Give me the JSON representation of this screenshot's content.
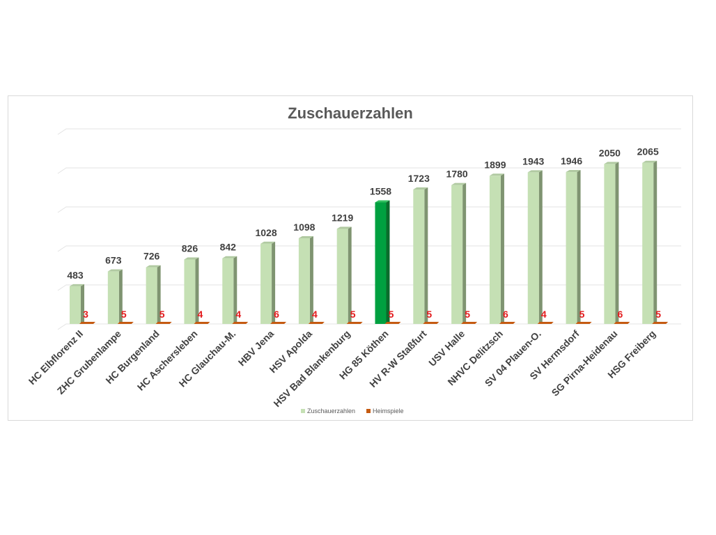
{
  "chart_data": {
    "type": "bar",
    "title": "Zuschauerzahlen",
    "categories": [
      "HC Elbflorenz II",
      "ZHC Grubenlampe",
      "HC Burgenland",
      "HC Aschersleben",
      "HC Glauchau-M.",
      "HBV Jena",
      "HSV Apolda",
      "HSV Bad Blankenburg",
      "HG 85 Köthen",
      "HV R-W Staßfurt",
      "USV Halle",
      "NHVC Delitzsch",
      "SV 04 Plauen-O.",
      "SV Hermsdorf",
      "SG Pirna-Heidenau",
      "HSG Freiberg"
    ],
    "series": [
      {
        "name": "Zuschauerzahlen",
        "values": [
          483,
          673,
          726,
          826,
          842,
          1028,
          1098,
          1219,
          1558,
          1723,
          1780,
          1899,
          1943,
          1946,
          2050,
          2065
        ],
        "color": "#c5e0b4"
      },
      {
        "name": "Heimspiele",
        "values": [
          3,
          5,
          5,
          4,
          4,
          6,
          4,
          5,
          5,
          5,
          5,
          6,
          4,
          5,
          6,
          5
        ],
        "color": "#c55a11"
      }
    ],
    "highlight": {
      "category": "HG 85 Köthen",
      "color": "#00a040"
    },
    "ylim": [
      0,
      2500
    ],
    "grid": true,
    "legend": "bottom",
    "xlabel": "",
    "ylabel": ""
  }
}
